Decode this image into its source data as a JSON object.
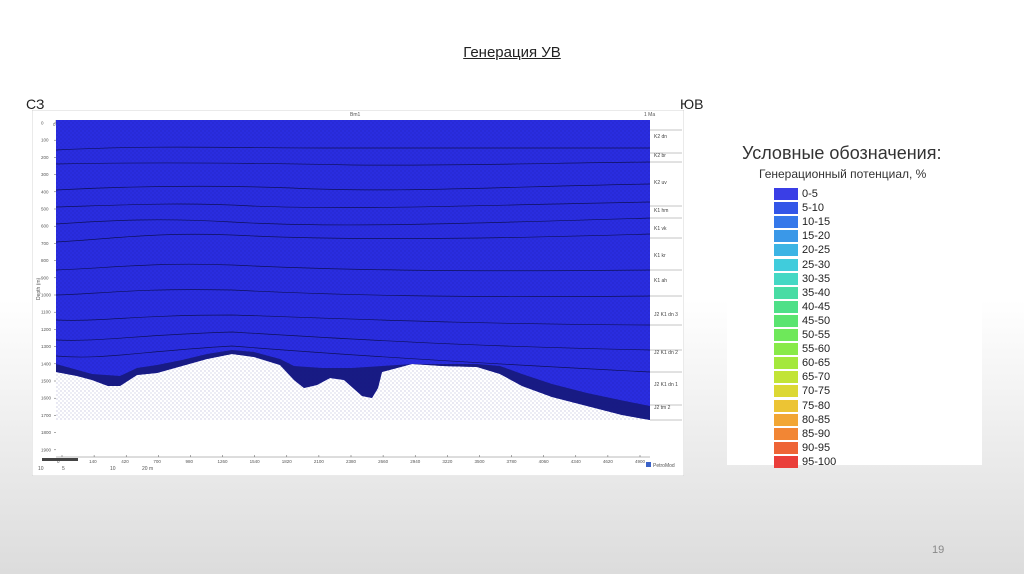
{
  "slide": {
    "title": "Генерация УВ",
    "left_label": "СЗ",
    "right_label": "ЮВ",
    "page_number": "19"
  },
  "section": {
    "top_axis_label": "Bm1",
    "top_axis_unit": "1 Ma",
    "top_ticks": [
      "0",
      "10",
      "20",
      "30",
      "40",
      "50",
      "60",
      "70",
      "80",
      "90",
      "100",
      "110",
      "120",
      "130",
      "140",
      "150",
      "160"
    ],
    "depth_axis_label": "Depth (m)",
    "depth_ticks": [
      "0",
      "100",
      "200",
      "300",
      "400",
      "500",
      "600",
      "700",
      "800",
      "900",
      "1000",
      "1100",
      "1200",
      "1300",
      "1400",
      "1500",
      "1600",
      "1700",
      "1800",
      "1900"
    ],
    "bottom_ticks": [
      "0",
      "140",
      "420",
      "700",
      "980",
      "1260",
      "1540",
      "1820",
      "2100",
      "2380",
      "2660",
      "2940",
      "3220",
      "3500",
      "3780",
      "4060",
      "4340",
      "4620",
      "4900"
    ],
    "scale_bar_labels": [
      "10",
      "5",
      "10",
      "20 m"
    ],
    "logo_text": "PetroMod",
    "formations": [
      "K2 dn",
      "K2 br",
      "K2 uv",
      "K1 hm",
      "K1 vk",
      "K1 kr",
      "K1 ah",
      "J2 K1 dn 3",
      "J2 K1 dn 2",
      "J2 K1 dn 1",
      "J2 tm 2"
    ],
    "fill_color": "#2a2de0",
    "dark_layer_color": "#161a7a"
  },
  "legend": {
    "title": "Условные обозначения:",
    "subtitle": "Генерационный потенциал, %",
    "items": [
      {
        "label": "0-5",
        "color": "#3a3ee6"
      },
      {
        "label": "5-10",
        "color": "#3356e8"
      },
      {
        "label": "10-15",
        "color": "#3578ea"
      },
      {
        "label": "15-20",
        "color": "#3a98e8"
      },
      {
        "label": "20-25",
        "color": "#3cb4e4"
      },
      {
        "label": "25-30",
        "color": "#40ccdc"
      },
      {
        "label": "30-35",
        "color": "#44d8c4"
      },
      {
        "label": "35-40",
        "color": "#48dca4"
      },
      {
        "label": "40-45",
        "color": "#4ee088"
      },
      {
        "label": "45-50",
        "color": "#5ae470"
      },
      {
        "label": "50-55",
        "color": "#6ee85a"
      },
      {
        "label": "55-60",
        "color": "#88ea48"
      },
      {
        "label": "60-65",
        "color": "#a4e83c"
      },
      {
        "label": "65-70",
        "color": "#c2e436"
      },
      {
        "label": "70-75",
        "color": "#dcd834"
      },
      {
        "label": "75-80",
        "color": "#ecc434"
      },
      {
        "label": "80-85",
        "color": "#f2a634"
      },
      {
        "label": "85-90",
        "color": "#f28634"
      },
      {
        "label": "90-95",
        "color": "#ee6436"
      },
      {
        "label": "95-100",
        "color": "#ea3e3a"
      }
    ]
  }
}
